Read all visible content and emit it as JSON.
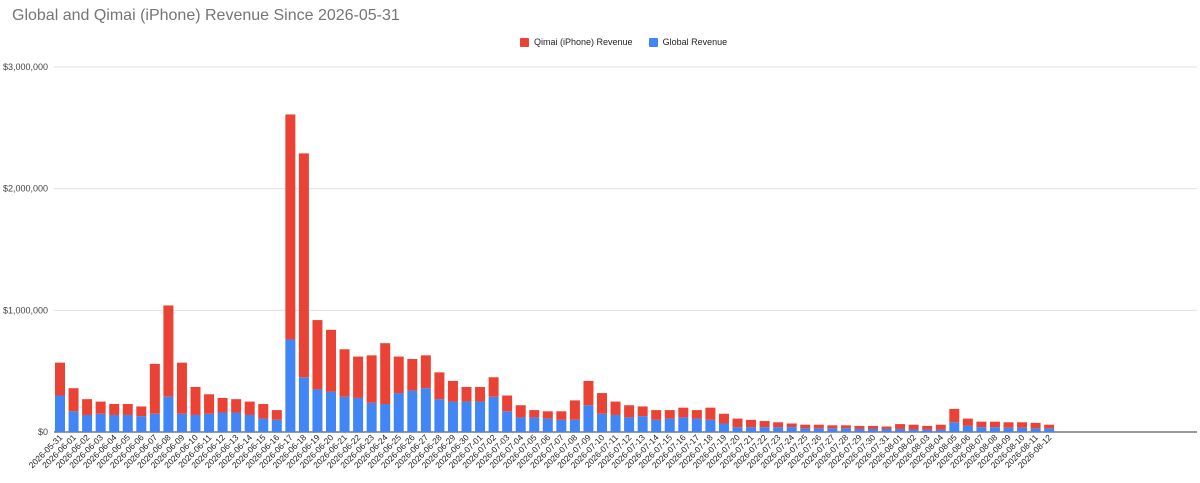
{
  "title": "Global and Qimai (iPhone) Revenue Since 2026-05-31",
  "colors": {
    "qimai": "#ea4335",
    "global": "#4285f4",
    "grid": "#e0e0e0",
    "axis": "#444444"
  },
  "legend": [
    {
      "name": "Qimai (iPhone) Revenue",
      "color": "#ea4335"
    },
    {
      "name": "Global Revenue",
      "color": "#4285f4"
    }
  ],
  "chart_data": {
    "type": "bar",
    "stacked": true,
    "title": "Global and Qimai (iPhone) Revenue Since 2026-05-31",
    "ylim": [
      0,
      3000000
    ],
    "yticks": [
      0,
      1000000,
      2000000,
      3000000
    ],
    "ytick_labels": [
      "$0",
      "$1,000,000",
      "$2,000,000",
      "$3,000,000"
    ],
    "grid": true,
    "legend_position": "top-center",
    "categories": [
      "2026-05-31",
      "2026-06-01",
      "2026-06-02",
      "2026-06-03",
      "2026-06-04",
      "2026-06-05",
      "2026-06-06",
      "2026-06-07",
      "2026-06-08",
      "2026-06-09",
      "2026-06-10",
      "2026-06-11",
      "2026-06-12",
      "2026-06-13",
      "2026-06-14",
      "2026-06-15",
      "2026-06-16",
      "2026-06-17",
      "2026-06-18",
      "2026-06-19",
      "2026-06-20",
      "2026-06-21",
      "2026-06-22",
      "2026-06-23",
      "2026-06-24",
      "2026-06-25",
      "2026-06-26",
      "2026-06-27",
      "2026-06-28",
      "2026-06-29",
      "2026-06-30",
      "2026-07-01",
      "2026-07-02",
      "2026-07-03",
      "2026-07-04",
      "2026-07-05",
      "2026-07-06",
      "2026-07-07",
      "2026-07-08",
      "2026-07-09",
      "2026-07-10",
      "2026-07-11",
      "2026-07-12",
      "2026-07-13",
      "2026-07-14",
      "2026-07-15",
      "2026-07-16",
      "2026-07-17",
      "2026-07-18",
      "2026-07-19",
      "2026-07-20",
      "2026-07-21",
      "2026-07-22",
      "2026-07-23",
      "2026-07-24",
      "2026-07-25",
      "2026-07-26",
      "2026-07-27",
      "2026-07-28",
      "2026-07-29",
      "2026-07-30",
      "2026-07-31",
      "2026-08-01",
      "2026-08-02",
      "2026-08-03",
      "2026-08-04",
      "2026-08-05",
      "2026-08-06",
      "2026-08-07",
      "2026-08-08",
      "2026-08-09",
      "2026-08-10",
      "2026-08-11",
      "2026-08-12"
    ],
    "series": [
      {
        "name": "Global Revenue",
        "color": "#4285f4",
        "values": [
          300000,
          170000,
          140000,
          150000,
          140000,
          140000,
          130000,
          150000,
          290000,
          150000,
          140000,
          150000,
          160000,
          160000,
          140000,
          110000,
          100000,
          760000,
          450000,
          350000,
          330000,
          290000,
          280000,
          240000,
          230000,
          320000,
          340000,
          360000,
          270000,
          250000,
          250000,
          250000,
          290000,
          170000,
          120000,
          120000,
          110000,
          100000,
          100000,
          220000,
          150000,
          140000,
          120000,
          130000,
          100000,
          110000,
          120000,
          110000,
          100000,
          70000,
          40000,
          40000,
          40000,
          40000,
          40000,
          30000,
          30000,
          30000,
          30000,
          25000,
          25000,
          25000,
          25000,
          20000,
          20000,
          20000,
          80000,
          50000,
          40000,
          40000,
          35000,
          35000,
          30000,
          30000
        ]
      },
      {
        "name": "Qimai (iPhone) Revenue",
        "color": "#ea4335",
        "values": [
          270000,
          190000,
          130000,
          100000,
          90000,
          90000,
          80000,
          410000,
          750000,
          420000,
          230000,
          160000,
          120000,
          110000,
          110000,
          120000,
          80000,
          1850000,
          1840000,
          570000,
          510000,
          390000,
          340000,
          390000,
          500000,
          300000,
          260000,
          270000,
          220000,
          170000,
          120000,
          120000,
          160000,
          130000,
          100000,
          60000,
          60000,
          70000,
          160000,
          200000,
          170000,
          110000,
          100000,
          80000,
          80000,
          70000,
          80000,
          70000,
          100000,
          80000,
          70000,
          60000,
          50000,
          40000,
          30000,
          30000,
          30000,
          25000,
          25000,
          25000,
          25000,
          20000,
          40000,
          40000,
          30000,
          40000,
          110000,
          60000,
          45000,
          45000,
          45000,
          45000,
          45000,
          30000
        ]
      }
    ]
  }
}
